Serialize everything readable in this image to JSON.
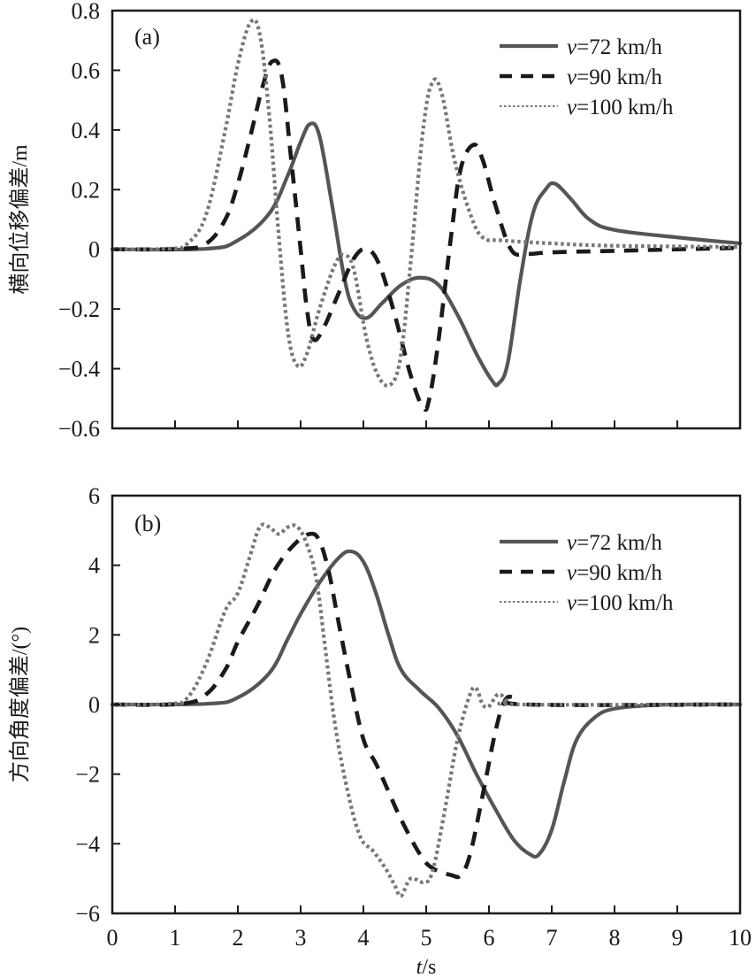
{
  "chart_data": [
    {
      "type": "line",
      "panel_label": "(a)",
      "title": "",
      "xlabel": "",
      "ylabel": "横向位移偏差/m",
      "xlim": [
        0,
        10
      ],
      "ylim": [
        -0.6,
        0.8
      ],
      "xticks": [
        0,
        1,
        2,
        3,
        4,
        5,
        6,
        7,
        8,
        9,
        10
      ],
      "xtick_labels_shown": false,
      "yticks": [
        -0.6,
        -0.4,
        -0.2,
        0,
        0.2,
        0.4,
        0.6,
        0.8
      ],
      "ytick_labels": [
        "−0.6",
        "−0.4",
        "−0.2",
        "0",
        "0.2",
        "0.4",
        "0.6",
        "0.8"
      ],
      "grid": false,
      "legend_position": "top-right",
      "series": [
        {
          "name": "v=72 km/h",
          "speed_label": "v",
          "speed_value": "=72 km/h",
          "style": "solid",
          "color": "#555555",
          "x": [
            0,
            1.5,
            2,
            2.5,
            2.8,
            3.0,
            3.15,
            3.3,
            3.5,
            3.7,
            3.85,
            4.05,
            4.3,
            4.6,
            4.9,
            5.2,
            5.5,
            5.8,
            6.05,
            6.15,
            6.3,
            6.5,
            6.7,
            6.9,
            7.05,
            7.3,
            7.6,
            8,
            9,
            10
          ],
          "y": [
            0,
            0.002,
            0.03,
            0.12,
            0.25,
            0.36,
            0.42,
            0.38,
            0.15,
            -0.1,
            -0.2,
            -0.23,
            -0.18,
            -0.12,
            -0.095,
            -0.12,
            -0.22,
            -0.35,
            -0.44,
            -0.45,
            -0.38,
            -0.1,
            0.12,
            0.2,
            0.22,
            0.17,
            0.1,
            0.065,
            0.04,
            0.02
          ]
        },
        {
          "name": "v=90 km/h",
          "speed_label": "v",
          "speed_value": "=90 km/h",
          "style": "dashed",
          "color": "#1a1a1a",
          "x": [
            0,
            1.1,
            1.5,
            1.8,
            2.0,
            2.2,
            2.4,
            2.55,
            2.7,
            2.85,
            3.0,
            3.1,
            3.2,
            3.35,
            3.6,
            3.85,
            4.05,
            4.25,
            4.5,
            4.75,
            4.95,
            5.05,
            5.2,
            5.4,
            5.55,
            5.75,
            5.9,
            6.1,
            6.35,
            6.6,
            7,
            8,
            10
          ],
          "y": [
            0,
            0.002,
            0.02,
            0.1,
            0.22,
            0.38,
            0.55,
            0.63,
            0.58,
            0.3,
            0.0,
            -0.2,
            -0.3,
            -0.27,
            -0.15,
            -0.03,
            0.0,
            -0.05,
            -0.22,
            -0.42,
            -0.53,
            -0.5,
            -0.3,
            0.05,
            0.27,
            0.35,
            0.3,
            0.15,
            0.0,
            -0.015,
            -0.01,
            -0.005,
            0.005
          ]
        },
        {
          "name": "v=100 km/h",
          "speed_label": "v",
          "speed_value": "=100 km/h",
          "style": "dotted",
          "color": "#777777",
          "x": [
            0,
            0.9,
            1.2,
            1.5,
            1.8,
            2.0,
            2.2,
            2.35,
            2.5,
            2.65,
            2.8,
            2.95,
            3.1,
            3.3,
            3.55,
            3.7,
            3.85,
            4.05,
            4.25,
            4.45,
            4.6,
            4.75,
            4.95,
            5.1,
            5.25,
            5.45,
            5.7,
            5.9,
            6.2,
            7,
            8,
            10
          ],
          "y": [
            0,
            0.002,
            0.02,
            0.12,
            0.4,
            0.62,
            0.76,
            0.72,
            0.45,
            0.05,
            -0.28,
            -0.39,
            -0.35,
            -0.2,
            -0.05,
            -0.02,
            -0.07,
            -0.3,
            -0.43,
            -0.45,
            -0.35,
            -0.05,
            0.4,
            0.56,
            0.52,
            0.3,
            0.12,
            0.04,
            0.03,
            0.02,
            0.012,
            0.008
          ]
        }
      ]
    },
    {
      "type": "line",
      "panel_label": "(b)",
      "title": "",
      "xlabel": "t/s",
      "xlabel_var": "t",
      "xlabel_unit": "/s",
      "ylabel": "方向角度偏差/(°)",
      "xlim": [
        0,
        10
      ],
      "ylim": [
        -6,
        6
      ],
      "xticks": [
        0,
        1,
        2,
        3,
        4,
        5,
        6,
        7,
        8,
        9,
        10
      ],
      "xtick_labels": [
        "0",
        "1",
        "2",
        "3",
        "4",
        "5",
        "6",
        "7",
        "8",
        "9",
        "10"
      ],
      "yticks": [
        -6,
        -4,
        -2,
        0,
        2,
        4,
        6
      ],
      "ytick_labels": [
        "−6",
        "−4",
        "−2",
        "0",
        "2",
        "4",
        "6"
      ],
      "grid": false,
      "legend_position": "top-right",
      "series": [
        {
          "name": "v=72 km/h",
          "speed_label": "v",
          "speed_value": "=72 km/h",
          "style": "solid",
          "color": "#555555",
          "x": [
            0,
            1.5,
            2,
            2.5,
            2.8,
            3.0,
            3.3,
            3.6,
            3.8,
            4.0,
            4.2,
            4.4,
            4.6,
            4.9,
            5.2,
            5.5,
            5.8,
            6.1,
            6.4,
            6.65,
            6.8,
            7.0,
            7.2,
            7.4,
            7.7,
            8,
            8.5,
            9,
            10
          ],
          "y": [
            0,
            0.02,
            0.2,
            0.9,
            1.9,
            2.6,
            3.5,
            4.2,
            4.4,
            4.1,
            3.2,
            2.0,
            1.0,
            0.4,
            -0.1,
            -0.9,
            -2.0,
            -3.0,
            -3.9,
            -4.3,
            -4.3,
            -3.6,
            -2.2,
            -1.0,
            -0.35,
            -0.12,
            -0.03,
            0,
            0
          ]
        },
        {
          "name": "v=90 km/h",
          "speed_label": "v",
          "speed_value": "=90 km/h",
          "style": "dashed",
          "color": "#1a1a1a",
          "x": [
            0,
            1.1,
            1.5,
            1.8,
            2.0,
            2.3,
            2.6,
            2.9,
            3.15,
            3.3,
            3.45,
            3.6,
            3.8,
            4.0,
            4.2,
            4.4,
            4.6,
            4.9,
            5.1,
            5.4,
            5.55,
            5.7,
            5.9,
            6.1,
            6.25,
            6.4,
            6.6,
            10
          ],
          "y": [
            0,
            0.02,
            0.3,
            1.0,
            1.8,
            2.8,
            3.9,
            4.6,
            4.9,
            4.7,
            3.8,
            2.4,
            0.6,
            -1.0,
            -1.7,
            -2.5,
            -3.3,
            -4.3,
            -4.7,
            -4.9,
            -4.9,
            -4.3,
            -2.6,
            -0.8,
            0.1,
            0.2,
            0.0,
            0
          ]
        },
        {
          "name": "v=100 km/h",
          "speed_label": "v",
          "speed_value": "=100 km/h",
          "style": "dotted",
          "color": "#777777",
          "x": [
            0,
            0.9,
            1.2,
            1.5,
            1.8,
            2.0,
            2.2,
            2.35,
            2.5,
            2.65,
            2.8,
            2.95,
            3.1,
            3.25,
            3.4,
            3.55,
            3.75,
            3.95,
            4.15,
            4.35,
            4.5,
            4.6,
            4.75,
            4.95,
            5.1,
            5.3,
            5.5,
            5.7,
            5.8,
            5.9,
            6.0,
            6.15,
            6.3,
            6.5,
            10
          ],
          "y": [
            0,
            0.02,
            0.2,
            1.2,
            2.7,
            3.2,
            4.3,
            5.1,
            5.1,
            4.9,
            5.1,
            5.1,
            4.6,
            3.6,
            1.5,
            -0.6,
            -2.5,
            -3.8,
            -4.2,
            -4.7,
            -5.2,
            -5.5,
            -5.0,
            -5.1,
            -4.8,
            -3.0,
            -1.0,
            0.3,
            0.45,
            0.0,
            -0.05,
            0.3,
            0.1,
            0.0,
            0
          ]
        }
      ]
    }
  ]
}
